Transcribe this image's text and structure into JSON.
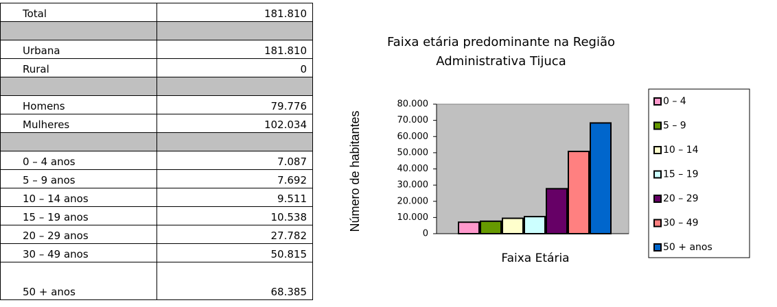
{
  "table": {
    "groups": [
      [
        [
          "Total",
          "181.810"
        ]
      ],
      [
        [
          "Urbana",
          "181.810"
        ],
        [
          "Rural",
          "0"
        ]
      ],
      [
        [
          "Homens",
          "79.776"
        ],
        [
          "Mulheres",
          "102.034"
        ]
      ],
      [
        [
          "0 – 4 anos",
          "7.087"
        ],
        [
          "5 – 9 anos",
          "7.692"
        ],
        [
          "10 – 14 anos",
          "9.511"
        ],
        [
          "15 – 19 anos",
          "10.538"
        ],
        [
          "20 – 29 anos",
          "27.782"
        ],
        [
          "30 – 49 anos",
          "50.815"
        ],
        [
          "50 + anos",
          "68.385"
        ]
      ]
    ]
  },
  "chart_data": {
    "type": "bar",
    "title": "Faixa etária predominante na Região Administrativa Tijuca",
    "x_label": "Faixa Etária",
    "y_label": "Número de habitantes",
    "categories": [
      "0 – 4",
      "5 – 9",
      "10 – 14",
      "15 – 19",
      "20 – 29",
      "30 – 49",
      "50 + anos"
    ],
    "values": [
      7087,
      7692,
      9511,
      10538,
      27782,
      50815,
      68385
    ],
    "colors": [
      "#ff99cc",
      "#669900",
      "#ffffcc",
      "#ccffff",
      "#660066",
      "#ff8080",
      "#0066cc"
    ],
    "ylim": [
      0,
      80000
    ],
    "yticks": [
      0,
      {
        "value": 10000,
        "label": "10.000"
      },
      {
        "value": 20000,
        "label": "20.000"
      },
      {
        "value": 30000,
        "label": "30.000"
      },
      {
        "value": 40000,
        "label": "40.000"
      },
      {
        "value": 50000,
        "label": "50.000"
      },
      {
        "value": 60000,
        "label": "60.000"
      },
      {
        "value": 70000,
        "label": "70.000"
      },
      {
        "value": 80000,
        "label": "80.000"
      }
    ],
    "legend": "right"
  }
}
